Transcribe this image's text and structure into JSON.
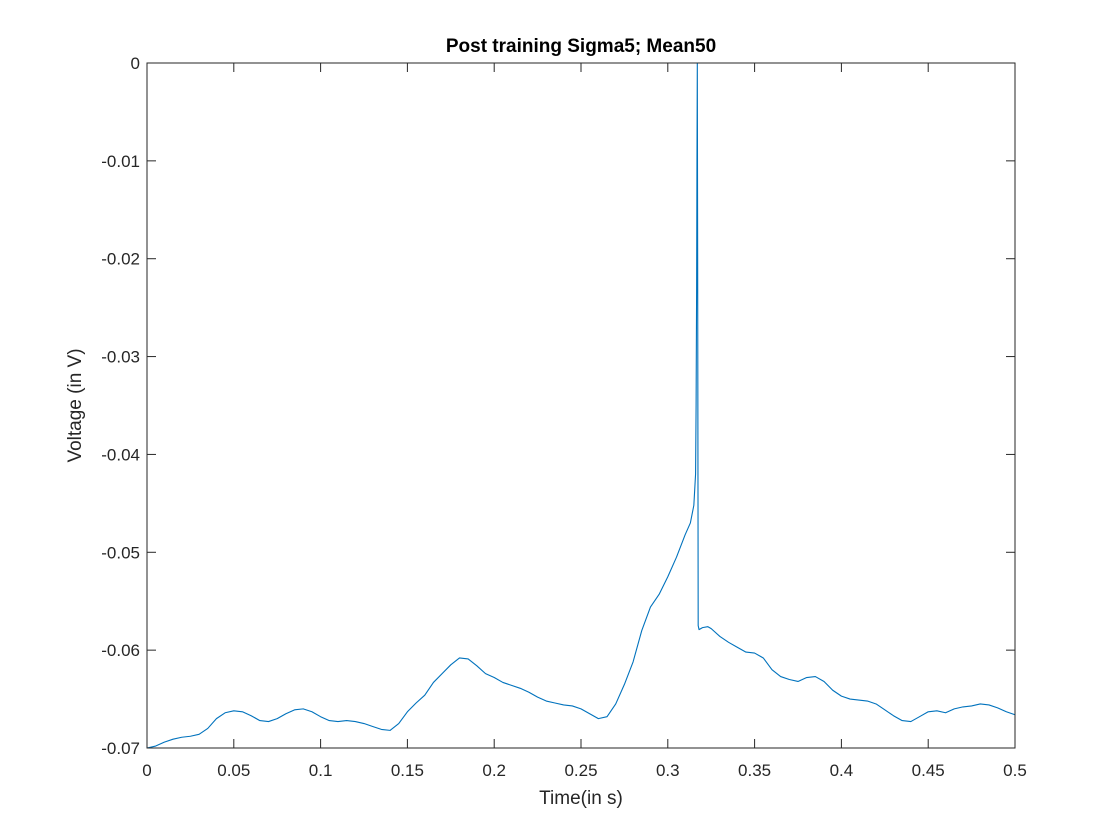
{
  "chart_data": {
    "type": "line",
    "title": "Post training Sigma5; Mean50",
    "xlabel": "Time(in s)",
    "ylabel": "Voltage (in V)",
    "xlim": [
      0,
      0.5
    ],
    "ylim": [
      -0.07,
      0
    ],
    "xticks": [
      0,
      0.05,
      0.1,
      0.15,
      0.2,
      0.25,
      0.3,
      0.35,
      0.4,
      0.45,
      0.5
    ],
    "xtick_labels": [
      "0",
      "0.05",
      "0.1",
      "0.15",
      "0.2",
      "0.25",
      "0.3",
      "0.35",
      "0.4",
      "0.45",
      "0.5"
    ],
    "yticks": [
      -0.07,
      -0.06,
      -0.05,
      -0.04,
      -0.03,
      -0.02,
      -0.01,
      0
    ],
    "ytick_labels": [
      "-0.07",
      "-0.06",
      "-0.05",
      "-0.04",
      "-0.03",
      "-0.02",
      "-0.01",
      "0"
    ],
    "grid": false,
    "box": true,
    "series": [
      {
        "color": "#0072BD",
        "points": [
          [
            0.0,
            -0.07
          ],
          [
            0.005,
            -0.0698
          ],
          [
            0.01,
            -0.0694
          ],
          [
            0.015,
            -0.0691
          ],
          [
            0.02,
            -0.0689
          ],
          [
            0.025,
            -0.0688
          ],
          [
            0.03,
            -0.0686
          ],
          [
            0.035,
            -0.068
          ],
          [
            0.04,
            -0.067
          ],
          [
            0.045,
            -0.0664
          ],
          [
            0.05,
            -0.0662
          ],
          [
            0.055,
            -0.0663
          ],
          [
            0.06,
            -0.0667
          ],
          [
            0.065,
            -0.0672
          ],
          [
            0.07,
            -0.0673
          ],
          [
            0.075,
            -0.067
          ],
          [
            0.08,
            -0.0665
          ],
          [
            0.085,
            -0.0661
          ],
          [
            0.09,
            -0.066
          ],
          [
            0.095,
            -0.0663
          ],
          [
            0.1,
            -0.0668
          ],
          [
            0.105,
            -0.0672
          ],
          [
            0.11,
            -0.0673
          ],
          [
            0.115,
            -0.0672
          ],
          [
            0.12,
            -0.0673
          ],
          [
            0.125,
            -0.0675
          ],
          [
            0.13,
            -0.0678
          ],
          [
            0.135,
            -0.0681
          ],
          [
            0.14,
            -0.0682
          ],
          [
            0.145,
            -0.0675
          ],
          [
            0.15,
            -0.0663
          ],
          [
            0.155,
            -0.0654
          ],
          [
            0.16,
            -0.0646
          ],
          [
            0.165,
            -0.0633
          ],
          [
            0.17,
            -0.0624
          ],
          [
            0.175,
            -0.0615
          ],
          [
            0.18,
            -0.0608
          ],
          [
            0.185,
            -0.0609
          ],
          [
            0.19,
            -0.0616
          ],
          [
            0.195,
            -0.0624
          ],
          [
            0.2,
            -0.0628
          ],
          [
            0.205,
            -0.0633
          ],
          [
            0.21,
            -0.0636
          ],
          [
            0.215,
            -0.0639
          ],
          [
            0.22,
            -0.0643
          ],
          [
            0.225,
            -0.0648
          ],
          [
            0.23,
            -0.0652
          ],
          [
            0.235,
            -0.0654
          ],
          [
            0.24,
            -0.0656
          ],
          [
            0.245,
            -0.0657
          ],
          [
            0.25,
            -0.066
          ],
          [
            0.255,
            -0.0665
          ],
          [
            0.26,
            -0.067
          ],
          [
            0.265,
            -0.0668
          ],
          [
            0.27,
            -0.0655
          ],
          [
            0.275,
            -0.0635
          ],
          [
            0.28,
            -0.0612
          ],
          [
            0.285,
            -0.058
          ],
          [
            0.29,
            -0.0556
          ],
          [
            0.295,
            -0.0543
          ],
          [
            0.3,
            -0.0525
          ],
          [
            0.305,
            -0.0505
          ],
          [
            0.31,
            -0.0482
          ],
          [
            0.313,
            -0.047
          ],
          [
            0.315,
            -0.0452
          ],
          [
            0.316,
            -0.042
          ],
          [
            0.3163,
            -0.035
          ],
          [
            0.3166,
            -0.023
          ],
          [
            0.3168,
            -0.01
          ],
          [
            0.317,
            0.0
          ],
          [
            0.3172,
            -0.02
          ],
          [
            0.3175,
            -0.0575
          ],
          [
            0.318,
            -0.0579
          ],
          [
            0.32,
            -0.0577
          ],
          [
            0.323,
            -0.0576
          ],
          [
            0.325,
            -0.0578
          ],
          [
            0.33,
            -0.0586
          ],
          [
            0.335,
            -0.0592
          ],
          [
            0.34,
            -0.0597
          ],
          [
            0.345,
            -0.0602
          ],
          [
            0.35,
            -0.0603
          ],
          [
            0.355,
            -0.0608
          ],
          [
            0.36,
            -0.062
          ],
          [
            0.365,
            -0.0627
          ],
          [
            0.37,
            -0.063
          ],
          [
            0.375,
            -0.0632
          ],
          [
            0.38,
            -0.0628
          ],
          [
            0.385,
            -0.0627
          ],
          [
            0.39,
            -0.0632
          ],
          [
            0.395,
            -0.0641
          ],
          [
            0.4,
            -0.0647
          ],
          [
            0.405,
            -0.065
          ],
          [
            0.41,
            -0.0651
          ],
          [
            0.415,
            -0.0652
          ],
          [
            0.42,
            -0.0655
          ],
          [
            0.425,
            -0.0661
          ],
          [
            0.43,
            -0.0667
          ],
          [
            0.435,
            -0.0672
          ],
          [
            0.44,
            -0.0673
          ],
          [
            0.445,
            -0.0668
          ],
          [
            0.45,
            -0.0663
          ],
          [
            0.455,
            -0.0662
          ],
          [
            0.46,
            -0.0664
          ],
          [
            0.465,
            -0.066
          ],
          [
            0.47,
            -0.0658
          ],
          [
            0.475,
            -0.0657
          ],
          [
            0.48,
            -0.0655
          ],
          [
            0.485,
            -0.0656
          ],
          [
            0.49,
            -0.0659
          ],
          [
            0.495,
            -0.0663
          ],
          [
            0.5,
            -0.0666
          ]
        ]
      }
    ]
  }
}
